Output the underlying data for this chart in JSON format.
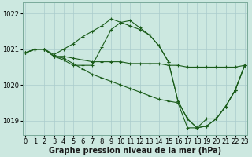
{
  "background_color": "#cce8e0",
  "plot_bg_color": "#cce8e0",
  "line_color": "#1a5c1a",
  "marker_color": "#1a5c1a",
  "grid_color": "#aacccc",
  "xlabel": "Graphe pression niveau de la mer (hPa)",
  "xlabel_fontsize": 7,
  "yticks": [
    1019,
    1020,
    1021,
    1022
  ],
  "xticks": [
    0,
    1,
    2,
    3,
    4,
    5,
    6,
    7,
    8,
    9,
    10,
    11,
    12,
    13,
    14,
    15,
    16,
    17,
    18,
    19,
    20,
    21,
    22,
    23
  ],
  "ylim": [
    1018.6,
    1022.3
  ],
  "xlim": [
    -0.3,
    23.3
  ],
  "series": [
    [
      1020.9,
      1021.0,
      1021.0,
      1020.8,
      1020.8,
      1020.75,
      1020.7,
      1020.65,
      1020.65,
      1020.65,
      1020.65,
      1020.6,
      1020.6,
      1020.6,
      1020.6,
      1020.55,
      1020.55,
      1020.5,
      1020.5,
      1020.5,
      1020.5,
      1020.5,
      1020.5,
      1020.55
    ],
    [
      1020.9,
      1021.0,
      1021.0,
      1020.85,
      1021.0,
      1021.15,
      1021.35,
      1021.5,
      1021.65,
      1021.85,
      1021.75,
      1021.65,
      1021.55,
      1021.4,
      1021.1,
      1020.65,
      1019.55,
      1019.05,
      1018.8,
      1018.85,
      1019.05,
      1019.4,
      1019.85,
      1020.55
    ],
    [
      1020.9,
      1021.0,
      1021.0,
      1020.8,
      1020.75,
      1020.6,
      1020.45,
      1020.3,
      1020.2,
      1020.1,
      1020.0,
      1019.9,
      1019.8,
      1019.7,
      1019.6,
      1019.55,
      1019.5,
      1018.8,
      1018.8,
      1019.05,
      1019.05,
      1019.4,
      1019.85,
      1020.55
    ],
    [
      1020.9,
      1021.0,
      1021.0,
      1020.8,
      1020.7,
      1020.55,
      1020.55,
      1020.55,
      1021.05,
      1021.55,
      1021.75,
      1021.8,
      1021.6,
      1021.4,
      1021.1,
      1020.65,
      1019.55,
      1019.05,
      1018.8,
      1018.85,
      1019.05,
      1019.4,
      1019.85,
      1020.55
    ]
  ],
  "tick_fontsize": 6,
  "linewidth": 0.8,
  "markersize": 3.0,
  "markeredgewidth": 0.8
}
